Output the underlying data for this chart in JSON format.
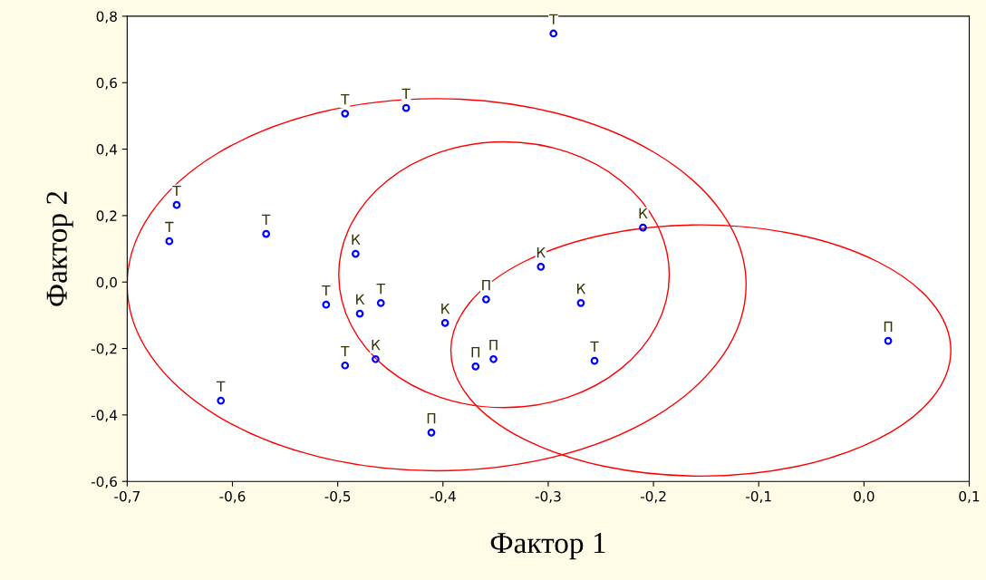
{
  "chart_data": {
    "type": "scatter",
    "xlabel": "Фактор 1",
    "ylabel": "Фактор 2",
    "xlim": [
      -0.7,
      0.1
    ],
    "ylim": [
      -0.6,
      0.8
    ],
    "xticks": [
      {
        "value": -0.7,
        "label": "-0,7"
      },
      {
        "value": -0.6,
        "label": "-0,6"
      },
      {
        "value": -0.5,
        "label": "-0,5"
      },
      {
        "value": -0.4,
        "label": "-0,4"
      },
      {
        "value": -0.3,
        "label": "-0,3"
      },
      {
        "value": -0.2,
        "label": "-0,2"
      },
      {
        "value": -0.1,
        "label": "-0,1"
      },
      {
        "value": 0.0,
        "label": "0,0"
      },
      {
        "value": 0.1,
        "label": "0,1"
      }
    ],
    "yticks": [
      {
        "value": -0.6,
        "label": "-0,6"
      },
      {
        "value": -0.4,
        "label": "-0,4"
      },
      {
        "value": -0.2,
        "label": "-0,2"
      },
      {
        "value": 0.0,
        "label": "0,0"
      },
      {
        "value": 0.2,
        "label": "0,2"
      },
      {
        "value": 0.4,
        "label": "0,4"
      },
      {
        "value": 0.6,
        "label": "0,6"
      },
      {
        "value": 0.8,
        "label": "0,8"
      }
    ],
    "grid": false,
    "series": [
      {
        "color": "#0000ff",
        "marker": "circle",
        "x": [
          -0.295,
          -0.493,
          -0.435,
          -0.653,
          -0.66,
          -0.568,
          -0.483,
          -0.21,
          -0.307,
          -0.511,
          -0.479,
          -0.459,
          -0.398,
          -0.359,
          -0.269,
          -0.493,
          -0.464,
          -0.369,
          -0.352,
          -0.256,
          -0.611,
          -0.411,
          0.023
        ],
        "values": [
          0.748,
          0.507,
          0.524,
          0.232,
          0.123,
          0.145,
          0.085,
          0.164,
          0.046,
          -0.068,
          -0.095,
          -0.063,
          -0.123,
          -0.052,
          -0.063,
          -0.251,
          -0.232,
          -0.254,
          -0.232,
          -0.237,
          -0.357,
          -0.453,
          -0.177
        ],
        "value_labels": [
          "Т",
          "Т",
          "Т",
          "Т",
          "Т",
          "Т",
          "К",
          "К",
          "К",
          "Т",
          "К",
          "Т",
          "К",
          "П",
          "К",
          "Т",
          "К",
          "П",
          "П",
          "Т",
          "Т",
          "П",
          "П"
        ]
      }
    ]
  }
}
